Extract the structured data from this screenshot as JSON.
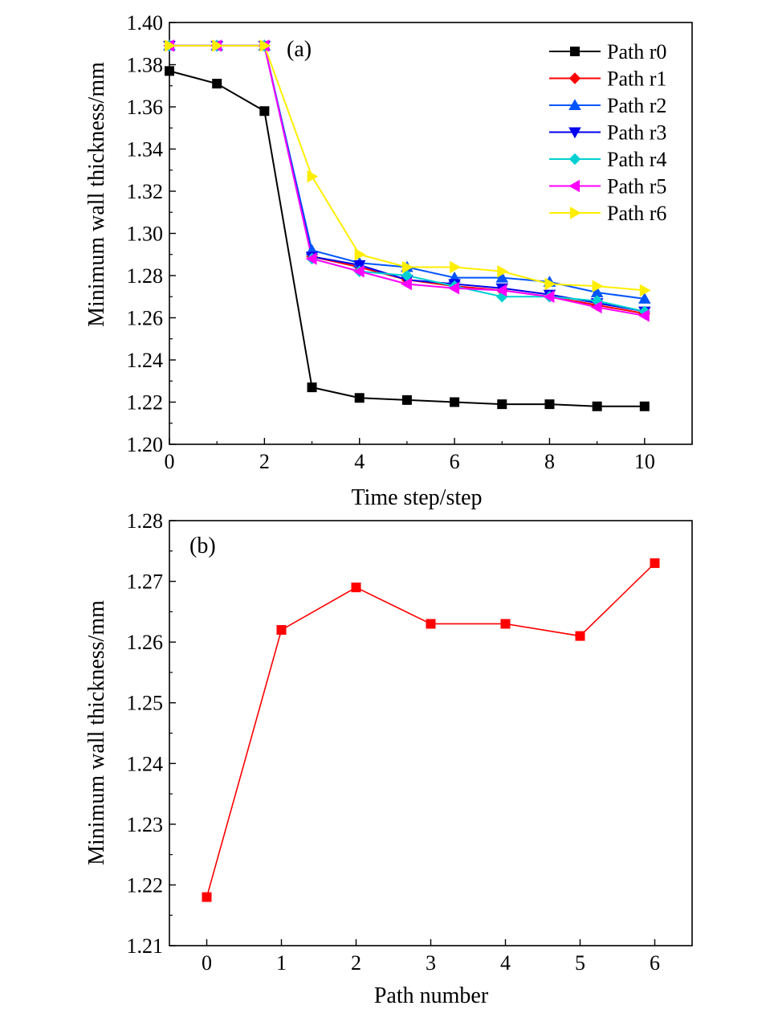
{
  "chart_data": [
    {
      "type": "line",
      "panel_label": "(a)",
      "xlabel": "Time step/step",
      "ylabel": "Minimum wall thickness/mm",
      "xlim": [
        0,
        11
      ],
      "ylim": [
        1.2,
        1.4
      ],
      "x_ticks": [
        "0",
        "2",
        "4",
        "6",
        "8",
        "10"
      ],
      "y_ticks": [
        "1.20",
        "1.22",
        "1.24",
        "1.26",
        "1.28",
        "1.30",
        "1.32",
        "1.34",
        "1.36",
        "1.38",
        "1.40"
      ],
      "legend_position": "top-right",
      "x": [
        0,
        1,
        2,
        3,
        4,
        5,
        6,
        7,
        8,
        9,
        10
      ],
      "series": [
        {
          "name": "Path r0",
          "color": "#000000",
          "marker": "square",
          "values": [
            1.377,
            1.371,
            1.358,
            1.227,
            1.222,
            1.221,
            1.22,
            1.219,
            1.219,
            1.218,
            1.218
          ]
        },
        {
          "name": "Path r1",
          "color": "#ff0000",
          "marker": "diamond",
          "values": [
            1.389,
            1.389,
            1.389,
            1.289,
            1.284,
            1.278,
            1.275,
            1.273,
            1.27,
            1.266,
            1.262
          ]
        },
        {
          "name": "Path r2",
          "color": "#0055ff",
          "marker": "triangle-up",
          "values": [
            1.389,
            1.389,
            1.389,
            1.292,
            1.286,
            1.284,
            1.279,
            1.279,
            1.277,
            1.272,
            1.269
          ]
        },
        {
          "name": "Path r3",
          "color": "#0000ee",
          "marker": "triangle-down",
          "values": [
            1.389,
            1.389,
            1.389,
            1.289,
            1.285,
            1.278,
            1.276,
            1.274,
            1.271,
            1.267,
            1.263
          ]
        },
        {
          "name": "Path r4",
          "color": "#00d0d0",
          "marker": "diamond",
          "values": [
            1.389,
            1.389,
            1.389,
            1.288,
            1.282,
            1.28,
            1.275,
            1.27,
            1.27,
            1.268,
            1.263
          ]
        },
        {
          "name": "Path r5",
          "color": "#ff00ff",
          "marker": "triangle-left",
          "values": [
            1.389,
            1.389,
            1.389,
            1.288,
            1.282,
            1.276,
            1.274,
            1.273,
            1.27,
            1.265,
            1.261
          ]
        },
        {
          "name": "Path r6",
          "color": "#ffee00",
          "marker": "triangle-right",
          "values": [
            1.389,
            1.389,
            1.389,
            1.327,
            1.29,
            1.284,
            1.284,
            1.282,
            1.276,
            1.275,
            1.273
          ]
        }
      ]
    },
    {
      "type": "line",
      "panel_label": "(b)",
      "xlabel": "Path number",
      "ylabel": "Minimum wall thickness/mm",
      "xlim": [
        -0.5,
        6.5
      ],
      "ylim": [
        1.21,
        1.28
      ],
      "x_ticks": [
        "0",
        "1",
        "2",
        "3",
        "4",
        "5",
        "6"
      ],
      "y_ticks": [
        "1.21",
        "1.22",
        "1.23",
        "1.24",
        "1.25",
        "1.26",
        "1.27",
        "1.28"
      ],
      "x": [
        0,
        1,
        2,
        3,
        4,
        5,
        6
      ],
      "series": [
        {
          "color": "#ff0000",
          "marker": "square",
          "values": [
            1.218,
            1.262,
            1.269,
            1.263,
            1.263,
            1.261,
            1.273
          ]
        }
      ]
    }
  ]
}
